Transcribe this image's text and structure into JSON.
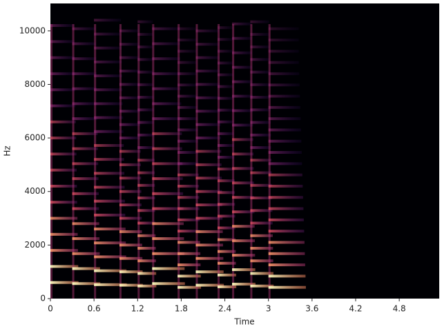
{
  "chart_data": {
    "type": "spectrogram",
    "xlabel": "Time",
    "ylabel": "Hz",
    "xlim": [
      0,
      5.35
    ],
    "ylim": [
      0,
      11025
    ],
    "xticks": [
      0,
      0.6,
      1.2,
      1.8,
      2.4,
      3,
      3.6,
      4.2,
      4.8
    ],
    "yticks": [
      0,
      2000,
      4000,
      6000,
      8000,
      10000
    ],
    "background": "#000004",
    "notes": [
      {
        "start": 0,
        "end": 0.3,
        "f0": 600
      },
      {
        "start": 0.3,
        "end": 0.6,
        "f0": 560
      },
      {
        "start": 0.6,
        "end": 0.95,
        "f0": 520
      },
      {
        "start": 0.95,
        "end": 1.2,
        "f0": 500
      },
      {
        "start": 1.2,
        "end": 1.4,
        "f0": 470
      },
      {
        "start": 1.4,
        "end": 1.75,
        "f0": 560
      },
      {
        "start": 1.75,
        "end": 2.0,
        "f0": 420
      },
      {
        "start": 2.0,
        "end": 2.3,
        "f0": 500
      },
      {
        "start": 2.3,
        "end": 2.5,
        "f0": 440
      },
      {
        "start": 2.5,
        "end": 2.75,
        "f0": 540
      },
      {
        "start": 2.75,
        "end": 3.0,
        "f0": 470
      },
      {
        "start": 3.0,
        "end": 3.4,
        "f0": 420
      }
    ]
  }
}
